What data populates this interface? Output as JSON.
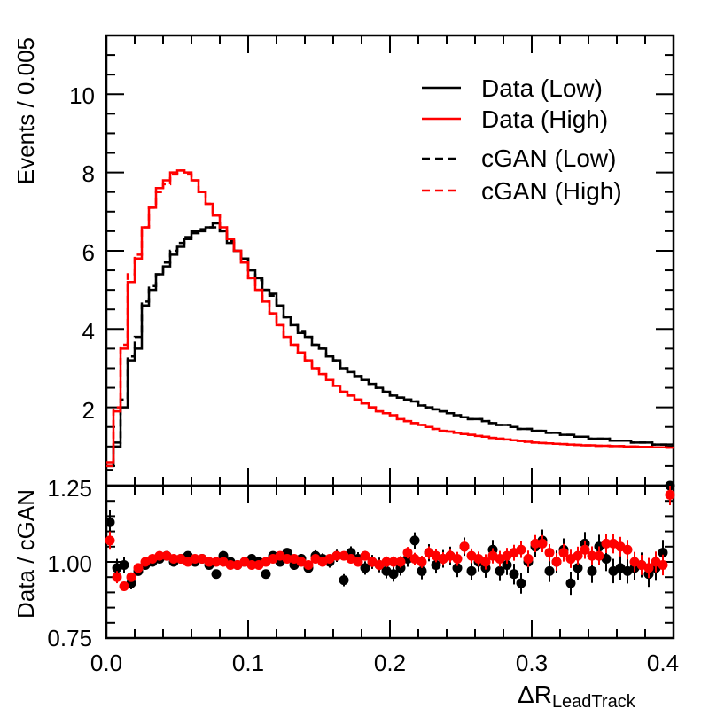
{
  "chart_data": {
    "type": "line",
    "upper_panel": {
      "ylabel": "Events / 0.005",
      "xlim": [
        0.0,
        0.4
      ],
      "ylim": [
        0.0,
        11.5
      ],
      "yticks": [
        "2",
        "4",
        "6",
        "8",
        "10"
      ],
      "legend": {
        "placement": "top-right",
        "entries": [
          {
            "label": "Data (Low)",
            "color": "#000000",
            "style": "solid"
          },
          {
            "label": "Data (High)",
            "color": "#ff0000",
            "style": "solid"
          },
          {
            "label": "cGAN (Low)",
            "color": "#000000",
            "style": "dashed"
          },
          {
            "label": "cGAN (High)",
            "color": "#ff0000",
            "style": "dashed"
          }
        ]
      },
      "bin_width": 0.005,
      "series": [
        {
          "name": "Data (Low)",
          "color": "#000000",
          "style": "solid",
          "values": [
            0.5,
            1.0,
            2.0,
            3.2,
            3.5,
            4.6,
            5.0,
            5.4,
            5.6,
            5.9,
            6.1,
            6.3,
            6.5,
            6.5,
            6.6,
            6.7,
            6.5,
            6.2,
            6.0,
            5.8,
            5.5,
            5.3,
            5.0,
            4.9,
            4.6,
            4.3,
            4.1,
            3.9,
            3.8,
            3.6,
            3.5,
            3.3,
            3.2,
            3.0,
            2.9,
            2.8,
            2.7,
            2.6,
            2.5,
            2.4,
            2.3,
            2.25,
            2.2,
            2.15,
            2.05,
            2.0,
            1.95,
            1.9,
            1.85,
            1.8,
            1.75,
            1.7,
            1.7,
            1.65,
            1.6,
            1.55,
            1.55,
            1.5,
            1.45,
            1.45,
            1.4,
            1.4,
            1.35,
            1.35,
            1.3,
            1.3,
            1.25,
            1.25,
            1.2,
            1.2,
            1.2,
            1.15,
            1.15,
            1.15,
            1.1,
            1.1,
            1.1,
            1.05,
            1.05,
            1.05
          ]
        },
        {
          "name": "cGAN (Low)",
          "color": "#000000",
          "style": "dashed",
          "values": [
            0.4,
            1.1,
            2.2,
            3.3,
            3.8,
            4.7,
            5.1,
            5.4,
            5.7,
            6.0,
            6.2,
            6.35,
            6.45,
            6.55,
            6.6,
            6.6,
            6.5,
            6.25,
            6.0,
            5.8,
            5.5,
            5.25,
            5.0,
            4.85,
            4.6,
            4.3,
            4.1,
            3.95,
            3.8,
            3.6,
            3.5,
            3.3,
            3.2,
            3.0,
            2.9,
            2.8,
            2.7,
            2.6,
            2.5,
            2.4,
            2.3,
            2.25,
            2.2,
            2.15,
            2.05,
            2.0,
            1.95,
            1.9,
            1.85,
            1.8,
            1.75,
            1.7,
            1.7,
            1.65,
            1.6,
            1.55,
            1.55,
            1.5,
            1.45,
            1.45,
            1.4,
            1.4,
            1.35,
            1.35,
            1.3,
            1.3,
            1.25,
            1.25,
            1.2,
            1.2,
            1.2,
            1.15,
            1.15,
            1.15,
            1.1,
            1.1,
            1.1,
            1.05,
            1.05,
            1.05
          ]
        },
        {
          "name": "Data (High)",
          "color": "#ff0000",
          "style": "solid",
          "values": [
            0.6,
            1.9,
            3.5,
            5.2,
            5.8,
            6.6,
            7.1,
            7.6,
            7.8,
            8.0,
            8.05,
            8.0,
            7.8,
            7.5,
            7.2,
            6.9,
            6.6,
            6.3,
            6.0,
            5.7,
            5.3,
            5.0,
            4.7,
            4.4,
            4.1,
            3.8,
            3.6,
            3.4,
            3.2,
            3.0,
            2.85,
            2.7,
            2.55,
            2.4,
            2.3,
            2.2,
            2.1,
            2.0,
            1.9,
            1.85,
            1.8,
            1.7,
            1.65,
            1.6,
            1.55,
            1.5,
            1.45,
            1.4,
            1.38,
            1.35,
            1.32,
            1.3,
            1.27,
            1.25,
            1.22,
            1.2,
            1.18,
            1.16,
            1.14,
            1.12,
            1.1,
            1.09,
            1.08,
            1.07,
            1.06,
            1.05,
            1.04,
            1.03,
            1.03,
            1.02,
            1.02,
            1.01,
            1.01,
            1.0,
            1.0,
            0.99,
            0.99,
            0.98,
            0.98,
            0.97
          ]
        },
        {
          "name": "cGAN (High)",
          "color": "#ff0000",
          "style": "dashed",
          "values": [
            0.5,
            2.0,
            3.6,
            5.4,
            5.9,
            6.6,
            7.1,
            7.5,
            7.7,
            7.95,
            8.05,
            7.95,
            7.8,
            7.5,
            7.2,
            6.9,
            6.6,
            6.3,
            6.0,
            5.7,
            5.3,
            5.0,
            4.7,
            4.4,
            4.1,
            3.8,
            3.6,
            3.4,
            3.2,
            3.0,
            2.85,
            2.7,
            2.55,
            2.4,
            2.3,
            2.2,
            2.1,
            2.0,
            1.9,
            1.85,
            1.8,
            1.7,
            1.65,
            1.6,
            1.55,
            1.5,
            1.45,
            1.4,
            1.38,
            1.35,
            1.32,
            1.3,
            1.27,
            1.25,
            1.22,
            1.2,
            1.18,
            1.16,
            1.14,
            1.12,
            1.1,
            1.09,
            1.08,
            1.07,
            1.06,
            1.05,
            1.04,
            1.03,
            1.03,
            1.02,
            1.02,
            1.01,
            1.01,
            1.0,
            1.0,
            0.99,
            0.99,
            0.98,
            0.98,
            0.97
          ]
        }
      ]
    },
    "lower_panel": {
      "type": "scatter",
      "ylabel": "Data / cGAN",
      "xlabel_main": "ΔR",
      "xlabel_sub": "LeadTrack",
      "ylim": [
        0.75,
        1.25
      ],
      "yticks": [
        "0.75",
        "1.00",
        "1.25"
      ],
      "xticks": [
        "0.0",
        "0.1",
        "0.2",
        "0.3",
        "0.4"
      ],
      "x": [
        0.0025,
        0.0075,
        0.0125,
        0.0175,
        0.0225,
        0.0275,
        0.0325,
        0.0375,
        0.0425,
        0.0475,
        0.0525,
        0.0575,
        0.0625,
        0.0675,
        0.0725,
        0.0775,
        0.0825,
        0.0875,
        0.0925,
        0.0975,
        0.1025,
        0.1075,
        0.1125,
        0.1175,
        0.1225,
        0.1275,
        0.1325,
        0.1375,
        0.1425,
        0.1475,
        0.1525,
        0.1575,
        0.1625,
        0.1675,
        0.1725,
        0.1775,
        0.1825,
        0.1875,
        0.1925,
        0.1975,
        0.2025,
        0.2075,
        0.2125,
        0.2175,
        0.2225,
        0.2275,
        0.2325,
        0.2375,
        0.2425,
        0.2475,
        0.2525,
        0.2575,
        0.2625,
        0.2675,
        0.2725,
        0.2775,
        0.2825,
        0.2875,
        0.2925,
        0.2975,
        0.3025,
        0.3075,
        0.3125,
        0.3175,
        0.3225,
        0.3275,
        0.3325,
        0.3375,
        0.3425,
        0.3475,
        0.3525,
        0.3575,
        0.3625,
        0.3675,
        0.3725,
        0.3775,
        0.3825,
        0.3875,
        0.3925,
        0.3975
      ],
      "series": [
        {
          "name": "Data (Low) / cGAN (Low)",
          "color": "#000000",
          "values": [
            1.13,
            0.98,
            0.99,
            0.93,
            0.97,
            0.99,
            1.0,
            1.01,
            1.02,
            1.0,
            1.01,
            1.02,
            1.0,
            1.01,
            0.99,
            0.96,
            1.02,
            1.0,
            0.99,
            1.0,
            1.01,
            1.0,
            0.96,
            1.02,
            1.0,
            1.03,
            0.99,
            1.01,
            0.98,
            1.02,
            1.01,
            1.0,
            1.02,
            0.94,
            1.03,
            1.01,
            0.98,
            1.0,
            0.99,
            0.97,
            0.96,
            0.98,
            1.01,
            1.07,
            0.97,
            1.03,
            0.99,
            1.01,
            1.02,
            0.98,
            1.05,
            0.97,
            1.0,
            0.98,
            1.04,
            0.97,
            0.99,
            0.96,
            0.93,
            1.0,
            1.05,
            1.07,
            0.97,
            1.0,
            1.04,
            0.93,
            0.98,
            1.06,
            0.97,
            1.05,
            1.01,
            0.97,
            0.98,
            0.97,
            0.98,
            0.99,
            0.96,
            0.98,
            1.03,
            1.27
          ],
          "errors": [
            0.04,
            0.03,
            0.025,
            0.02,
            0.015,
            0.012,
            0.01,
            0.01,
            0.01,
            0.01,
            0.01,
            0.01,
            0.01,
            0.01,
            0.01,
            0.01,
            0.012,
            0.012,
            0.012,
            0.012,
            0.013,
            0.013,
            0.014,
            0.014,
            0.015,
            0.015,
            0.016,
            0.016,
            0.017,
            0.018,
            0.018,
            0.019,
            0.02,
            0.02,
            0.021,
            0.022,
            0.022,
            0.023,
            0.024,
            0.024,
            0.025,
            0.025,
            0.026,
            0.027,
            0.027,
            0.028,
            0.028,
            0.029,
            0.03,
            0.03,
            0.03,
            0.031,
            0.031,
            0.032,
            0.032,
            0.033,
            0.033,
            0.034,
            0.034,
            0.035,
            0.035,
            0.036,
            0.036,
            0.037,
            0.037,
            0.038,
            0.038,
            0.038,
            0.039,
            0.039,
            0.04,
            0.04,
            0.04,
            0.041,
            0.041,
            0.041,
            0.042,
            0.042,
            0.042,
            0.043
          ]
        },
        {
          "name": "Data (High) / cGAN (High)",
          "color": "#ff0000",
          "values": [
            1.07,
            0.95,
            0.92,
            0.95,
            0.98,
            1.0,
            1.01,
            1.02,
            1.02,
            1.01,
            1.01,
            1.0,
            1.01,
            1.01,
            1.0,
            1.0,
            1.0,
            0.99,
            0.99,
            1.0,
            0.99,
            0.99,
            1.0,
            1.01,
            1.02,
            1.01,
            1.01,
            1.0,
            0.99,
            1.01,
            1.0,
            1.01,
            1.02,
            1.02,
            1.01,
            1.0,
            1.02,
            1.0,
            0.99,
            1.0,
            1.0,
            1.0,
            1.03,
            1.01,
            1.0,
            1.03,
            1.02,
            1.01,
            1.02,
            1.01,
            1.05,
            1.02,
            1.01,
            1.0,
            1.02,
            1.01,
            1.02,
            1.03,
            1.04,
            1.01,
            1.06,
            1.06,
            1.03,
            1.0,
            1.03,
            1.01,
            1.02,
            1.04,
            1.02,
            1.02,
            1.06,
            1.06,
            1.05,
            1.04,
            1.0,
            0.99,
            0.98,
            1.0,
            0.99,
            1.22
          ],
          "errors": [
            0.03,
            0.02,
            0.015,
            0.012,
            0.01,
            0.008,
            0.007,
            0.006,
            0.006,
            0.006,
            0.006,
            0.006,
            0.006,
            0.006,
            0.006,
            0.007,
            0.007,
            0.007,
            0.008,
            0.008,
            0.008,
            0.009,
            0.009,
            0.01,
            0.01,
            0.011,
            0.011,
            0.012,
            0.012,
            0.013,
            0.013,
            0.014,
            0.014,
            0.015,
            0.015,
            0.016,
            0.016,
            0.017,
            0.017,
            0.018,
            0.018,
            0.019,
            0.019,
            0.02,
            0.02,
            0.021,
            0.021,
            0.022,
            0.022,
            0.023,
            0.023,
            0.024,
            0.024,
            0.025,
            0.025,
            0.026,
            0.026,
            0.026,
            0.027,
            0.027,
            0.028,
            0.028,
            0.028,
            0.029,
            0.029,
            0.03,
            0.03,
            0.03,
            0.031,
            0.031,
            0.031,
            0.032,
            0.032,
            0.032,
            0.033,
            0.033,
            0.033,
            0.034,
            0.034,
            0.034
          ]
        }
      ]
    }
  }
}
